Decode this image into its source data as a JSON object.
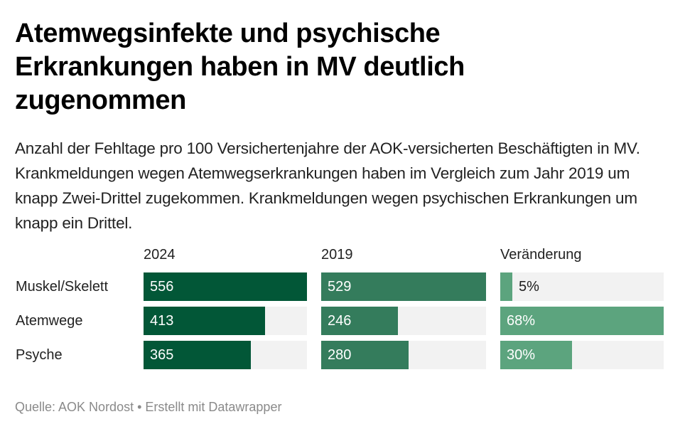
{
  "header": {
    "title": "Atemwegsinfekte und psychische Erkrankungen haben in MV deutlich zugenommen",
    "subtitle": "Anzahl der Fehltage pro 100 Versichertenjahre der AOK-versicherten Beschäftigten in MV. Krankmeldungen wegen Atemwegserkrankungen haben im Vergleich zum Jahr 2019 um knapp Zwei-Drittel zugekommen. Krankmeldungen wegen psychischen Erkrankungen um knapp ein Drittel."
  },
  "footer": {
    "text": "Quelle: AOK Nordost • Erstellt mit Datawrapper"
  },
  "chart_data": {
    "type": "bar",
    "orientation": "horizontal",
    "title": "Atemwegsinfekte und psychische Erkrankungen haben in MV deutlich zugenommen",
    "categories": [
      "Muskel/Skelett",
      "Atemwege",
      "Psyche"
    ],
    "series": [
      {
        "name": "2024",
        "values": [
          556,
          413,
          365
        ],
        "labels": [
          "556",
          "413",
          "365"
        ],
        "color": "#025737",
        "max": 556
      },
      {
        "name": "2019",
        "values": [
          529,
          246,
          280
        ],
        "labels": [
          "529",
          "246",
          "280"
        ],
        "color": "#347c5c",
        "max": 529
      },
      {
        "name": "Veränderung",
        "values": [
          5,
          68,
          30
        ],
        "labels": [
          "5%",
          "68%",
          "30%"
        ],
        "unit": "%",
        "color": "#5ca47e",
        "max": 68
      }
    ],
    "background_color": "#f2f2f2",
    "grid": false,
    "legend": "column-headers-top",
    "xlabel": "",
    "ylabel": ""
  }
}
